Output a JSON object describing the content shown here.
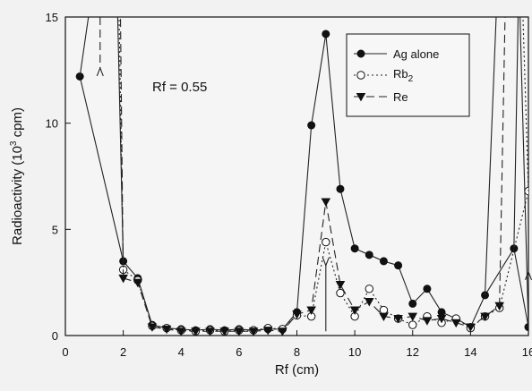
{
  "chart_data": {
    "type": "line",
    "xlabel": "Rf (cm)",
    "ylabel_parts": [
      "Radioactivity (10",
      "3",
      " cpm)"
    ],
    "xlim": [
      0,
      16
    ],
    "ylim": [
      0,
      15
    ],
    "xticks": [
      0,
      2,
      4,
      6,
      8,
      10,
      12,
      14,
      16
    ],
    "yticks": [
      0,
      5,
      10,
      15
    ],
    "grid": false,
    "legend_position": "top-right",
    "annotation": "Rf = 0.55",
    "series": [
      {
        "name": "Ag alone",
        "marker": "filled-circle",
        "line": "solid",
        "x": [
          0.5,
          2.0,
          2.5,
          3.0,
          3.5,
          4.0,
          4.5,
          5.0,
          5.5,
          6.0,
          6.5,
          7.0,
          7.5,
          8.0,
          8.5,
          9.0,
          9.5,
          10.0,
          10.5,
          11.0,
          11.5,
          12.0,
          12.5,
          13.0,
          13.5,
          14.0,
          14.5,
          15.5,
          16.0
        ],
        "y": [
          12.2,
          3.5,
          2.7,
          0.5,
          0.35,
          0.3,
          0.25,
          0.3,
          0.25,
          0.3,
          0.25,
          0.3,
          0.3,
          1.1,
          9.9,
          14.2,
          6.9,
          4.1,
          3.8,
          3.5,
          3.3,
          1.5,
          2.2,
          1.1,
          0.8,
          0.4,
          1.9,
          4.1,
          0.4
        ]
      },
      {
        "name_parts": [
          "Rb",
          "2"
        ],
        "marker": "open-circle",
        "line": "dotted",
        "x": [
          2.0,
          2.5,
          3.0,
          3.5,
          4.0,
          4.5,
          5.0,
          5.5,
          6.0,
          6.5,
          7.0,
          7.5,
          8.0,
          8.5,
          9.0,
          9.5,
          10.0,
          10.5,
          11.0,
          11.5,
          12.0,
          12.5,
          13.0,
          13.5,
          14.0,
          14.5,
          15.0,
          16.0
        ],
        "y": [
          3.1,
          2.6,
          0.45,
          0.35,
          0.25,
          0.2,
          0.25,
          0.2,
          0.25,
          0.25,
          0.35,
          0.3,
          0.95,
          0.9,
          4.4,
          2.0,
          0.9,
          2.2,
          1.2,
          0.8,
          0.5,
          0.9,
          0.6,
          0.8,
          0.35,
          0.9,
          1.3,
          6.8
        ]
      },
      {
        "name": "Re",
        "marker": "filled-triangle-down",
        "line": "dashed",
        "x": [
          2.0,
          2.5,
          3.0,
          3.5,
          4.0,
          4.5,
          5.0,
          5.5,
          6.0,
          6.5,
          7.0,
          7.5,
          8.0,
          8.5,
          9.0,
          9.5,
          10.0,
          10.5,
          11.0,
          11.5,
          12.0,
          12.5,
          13.0,
          13.5,
          14.0,
          14.5,
          15.0
        ],
        "y": [
          2.7,
          2.5,
          0.4,
          0.3,
          0.2,
          0.2,
          0.2,
          0.2,
          0.2,
          0.2,
          0.25,
          0.2,
          1.0,
          1.2,
          6.3,
          2.4,
          1.2,
          1.6,
          0.9,
          0.8,
          0.9,
          0.7,
          0.8,
          0.6,
          0.4,
          0.9,
          1.4
        ]
      }
    ]
  }
}
